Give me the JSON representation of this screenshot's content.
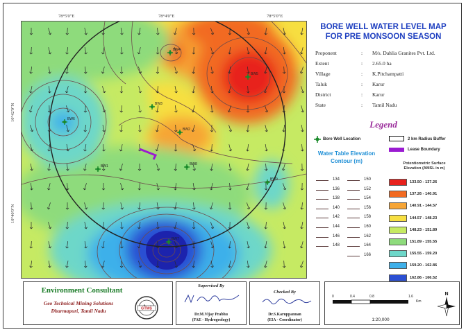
{
  "title": {
    "line1": "BORE WELL WATER LEVEL MAP",
    "line2": "FOR PRE MONSOON SEASON"
  },
  "project_info": [
    {
      "label": "Proponent",
      "value": "M/s. Dahlia Granites Pvt. Ltd."
    },
    {
      "label": "Extent",
      "value": "2.65.0 ha"
    },
    {
      "label": "Village",
      "value": "K.Pitchampatti"
    },
    {
      "label": "Taluk",
      "value": "Karur"
    },
    {
      "label": "District",
      "value": "Karur"
    },
    {
      "label": "State",
      "value": "Tamil Nadu"
    }
  ],
  "map": {
    "top_coords": [
      "78°5'0\"E",
      "78°4'0\"E",
      "78°5'0\"E"
    ],
    "left_coords": [
      "10°42'0\"N",
      "10°40'0\"N"
    ],
    "bore_wells": [
      {
        "label": "BW4",
        "bg": "#f2a23a"
      },
      {
        "label": "BW5",
        "bg": "#e7262a"
      },
      {
        "label": "BW3",
        "bg": "#a9e07b"
      },
      {
        "label": "BW6",
        "bg": "#3db3e6"
      },
      {
        "label": "BW2",
        "bg": "#e6ef6a"
      },
      {
        "label": "BW1",
        "bg": "#a9e07b"
      },
      {
        "label": "BW8",
        "bg": "#a9e07b"
      },
      {
        "label": "BW9",
        "bg": "#70d9c6"
      },
      {
        "label": "BW7",
        "bg": "#2224b8"
      }
    ]
  },
  "legend": {
    "title": "Legend",
    "bore_well_location": "Bore Well Location",
    "radius_buffer": "2 km Radius Buffer",
    "lease_boundary": "Lease Boundary",
    "water_table_title_1": "Water Table Elevation",
    "water_table_title_2": "Contour (m)",
    "contours_left": [
      "134",
      "136",
      "138",
      "140",
      "142",
      "144",
      "146",
      "148"
    ],
    "contours_right": [
      "150",
      "152",
      "154",
      "156",
      "158",
      "160",
      "162",
      "164",
      "166"
    ],
    "potentiometric_title_1": "Potentiometric Surface",
    "potentiometric_title_2": "Elevation (AMSL in m)",
    "ranges": [
      {
        "label": "133.50 - 137.26",
        "color": "#e8211c"
      },
      {
        "label": "137.26 - 140.91",
        "color": "#f26a21"
      },
      {
        "label": "140.91 - 144.57",
        "color": "#f6a536"
      },
      {
        "label": "144.57 - 148.23",
        "color": "#f7df41"
      },
      {
        "label": "148.23 - 151.89",
        "color": "#c6ea63"
      },
      {
        "label": "151.89 - 155.55",
        "color": "#8edb7c"
      },
      {
        "label": "155.55 - 159.20",
        "color": "#6dd7c9"
      },
      {
        "label": "159.20 - 162.86",
        "color": "#3eb0ea"
      },
      {
        "label": "162.86 - 166.52",
        "color": "#2b4fd3"
      }
    ]
  },
  "footer": {
    "consultant_title": "Environment Consultant",
    "consultant_line1": "Geo Technical Mining Solutions",
    "consultant_line2": "Dharmapuri, Tamil Nadu",
    "logo_text": "GTMS",
    "supervised_caption": "Supervised By",
    "supervisor_name": "Dr.M.Vijay Prabhu",
    "supervisor_role": "(FAE - Hydrogeology)",
    "checked_caption": "Checked By",
    "checker_name": "Dr.S.Karuppannan",
    "checker_role": "(EIA - Coordinator)",
    "scale_ticks": [
      "0",
      "0.4",
      "0.8",
      "1.6"
    ],
    "scale_unit": "Km",
    "scale_ratio": "1:20,000",
    "north_label": "N"
  }
}
